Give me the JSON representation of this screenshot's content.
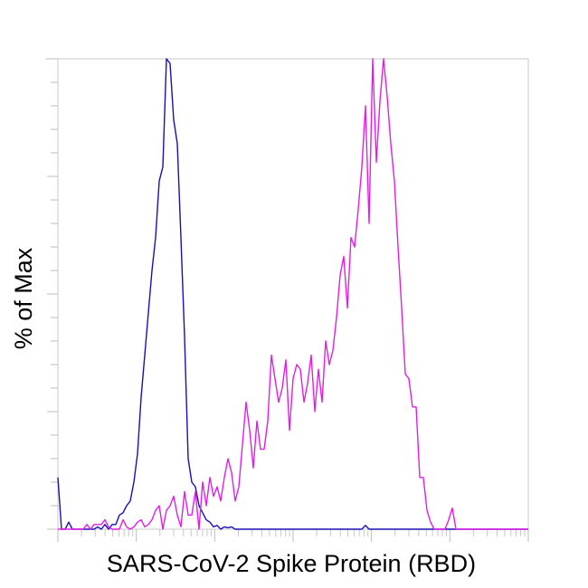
{
  "chart_data": {
    "type": "line",
    "title": "",
    "xlabel": "SARS-CoV-2 Spike Protein (RBD)",
    "ylabel": "% of Max",
    "xscale": "log",
    "xlim": [
      1,
      1000000
    ],
    "ylim": [
      0,
      100
    ],
    "grid": false,
    "legend": "none",
    "bins": "131 log-spaced bins from 1 to 1000000",
    "series": [
      {
        "color": "#1a0fb4",
        "values": [
          11,
          0,
          0,
          1.5,
          0,
          0,
          0,
          0,
          0,
          0,
          0,
          0.5,
          0,
          1,
          0,
          1,
          1,
          3,
          3.5,
          5,
          6,
          10,
          16,
          28,
          37,
          46,
          55,
          62,
          74,
          77,
          100,
          99,
          87,
          82,
          62,
          41,
          15,
          10,
          9,
          5,
          3.5,
          2,
          1.5,
          0.5,
          0.8,
          0,
          0.5,
          0.3,
          0.5,
          0,
          0,
          0,
          0,
          0,
          0,
          0,
          0,
          0,
          0,
          0,
          0,
          0,
          0,
          0,
          0,
          0,
          0,
          0,
          0,
          0,
          0,
          0,
          0,
          0,
          0,
          0,
          0,
          0,
          0,
          0,
          0,
          0,
          0,
          0,
          0,
          0.8,
          0,
          0,
          0,
          0,
          0,
          0,
          0,
          0,
          0,
          0,
          0,
          0,
          0,
          0,
          0,
          0,
          0,
          0,
          0,
          0,
          0,
          0,
          0,
          0,
          0,
          0,
          0,
          0,
          0,
          0,
          0,
          0,
          0,
          0,
          0,
          0,
          0,
          0,
          0,
          0,
          0,
          0,
          0,
          0,
          0
        ]
      },
      {
        "color": "#e21ee6",
        "values": [
          0,
          0,
          0,
          0,
          0,
          0,
          0,
          0,
          1,
          0,
          1,
          1,
          1,
          2,
          0.5,
          0,
          0,
          0,
          2,
          0.5,
          0,
          0.5,
          1.5,
          2,
          0.5,
          1,
          2,
          4,
          5,
          0,
          4,
          5,
          7,
          3,
          0.5,
          8,
          3,
          3,
          8,
          0,
          10,
          5,
          11,
          7,
          9,
          6,
          11,
          15,
          12,
          6,
          9,
          18,
          27,
          21,
          13,
          23,
          17,
          17,
          23,
          37,
          32,
          27,
          30,
          36,
          21,
          32,
          35,
          34,
          27,
          31,
          37,
          25,
          34,
          27,
          40,
          35,
          38,
          45,
          54,
          58,
          47,
          62,
          60,
          68,
          77,
          90,
          65,
          100,
          78,
          91,
          100,
          92,
          82,
          74,
          60,
          47,
          33,
          32,
          26,
          26,
          11,
          11,
          4,
          1.5,
          0,
          0,
          0,
          0,
          2,
          4.5,
          0,
          0,
          0,
          0,
          0,
          0,
          0,
          0,
          0,
          0,
          0,
          0,
          0,
          0,
          0,
          0,
          0,
          0,
          0,
          0,
          0
        ]
      }
    ]
  }
}
